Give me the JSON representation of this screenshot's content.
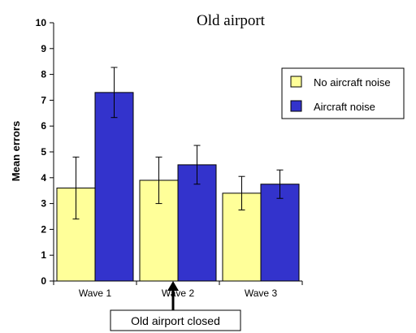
{
  "chart_data": {
    "type": "bar",
    "title": "Old airport",
    "xlabel": "",
    "ylabel": "Mean errors",
    "ylim": [
      0,
      10
    ],
    "yticks": [
      "0",
      "1",
      "2",
      "3",
      "4",
      "5",
      "6",
      "7",
      "8",
      "9",
      "10"
    ],
    "categories": [
      "Wave 1",
      "Wave 2",
      "Wave 3"
    ],
    "series": [
      {
        "name": "No aircraft noise",
        "color": "#ffff99",
        "values": [
          3.6,
          3.9,
          3.4
        ],
        "error": [
          1.2,
          0.9,
          0.65
        ]
      },
      {
        "name": "Aircraft noise",
        "color": "#3333cc",
        "values": [
          7.3,
          4.5,
          3.75
        ],
        "error": [
          0.97,
          0.75,
          0.55
        ]
      }
    ],
    "grid": false,
    "legend_position": "top-right",
    "annotation": {
      "text": "Old airport closed",
      "between_categories": [
        "Wave 1",
        "Wave 2"
      ]
    }
  }
}
